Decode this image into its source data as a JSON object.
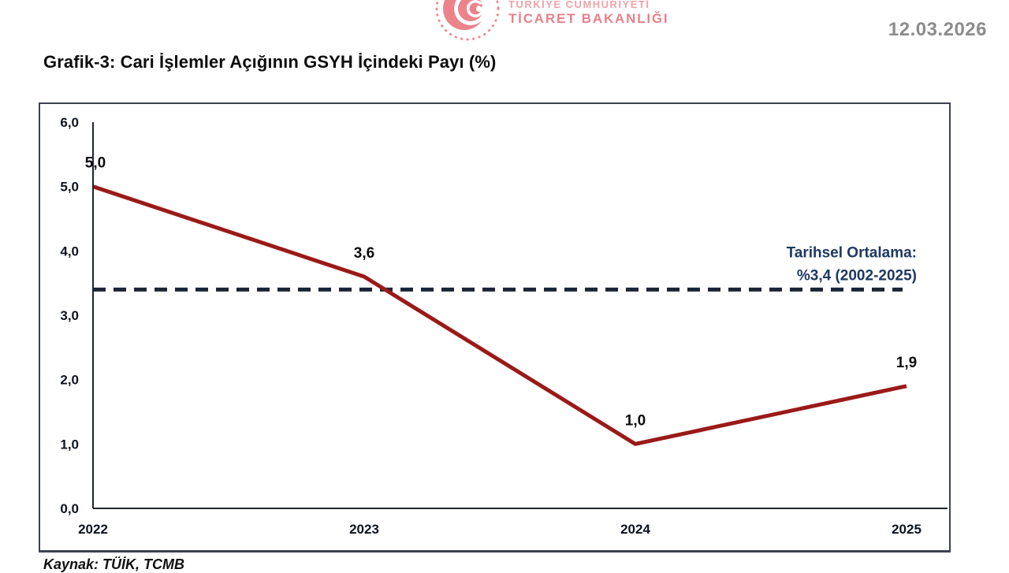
{
  "header": {
    "logo": {
      "line1": "TÜRKİYE CUMHURİYETİ",
      "line2": "TİCARET BAKANLIĞI",
      "color": "#e8818a"
    },
    "date": "12.03.2026"
  },
  "title": "Grafik-3: Cari İşlemler Açığının GSYH İçindeki Payı (%)",
  "source": "Kaynak: TÜİK, TCMB",
  "chart_data": {
    "type": "line",
    "categories": [
      "2022",
      "2023",
      "2024",
      "2025"
    ],
    "values": [
      5.0,
      3.6,
      1.0,
      1.9
    ],
    "data_labels": [
      "5,0",
      "3,6",
      "1,0",
      "1,9"
    ],
    "title": "Grafik-3: Cari İşlemler Açığının GSYH İçindeki Payı (%)",
    "xlabel": "",
    "ylabel": "",
    "ylim": [
      0,
      6
    ],
    "ytick_values": [
      6,
      5,
      4,
      3,
      2,
      1,
      0
    ],
    "ytick_labels": [
      "6,0",
      "5,0",
      "4,0",
      "3,0",
      "2,0",
      "1,0",
      "0,0"
    ],
    "grid": false,
    "legend": false,
    "line_color": "#9a1a18",
    "axis_color": "#21252e",
    "label_color": "#0d1420",
    "average_line": {
      "value": 3.4,
      "color": "#1b2538",
      "text_color": "#1f3864",
      "label_line1": "Tarihsel Ortalama:",
      "label_line2": "%3,4 (2002-2025)"
    }
  }
}
